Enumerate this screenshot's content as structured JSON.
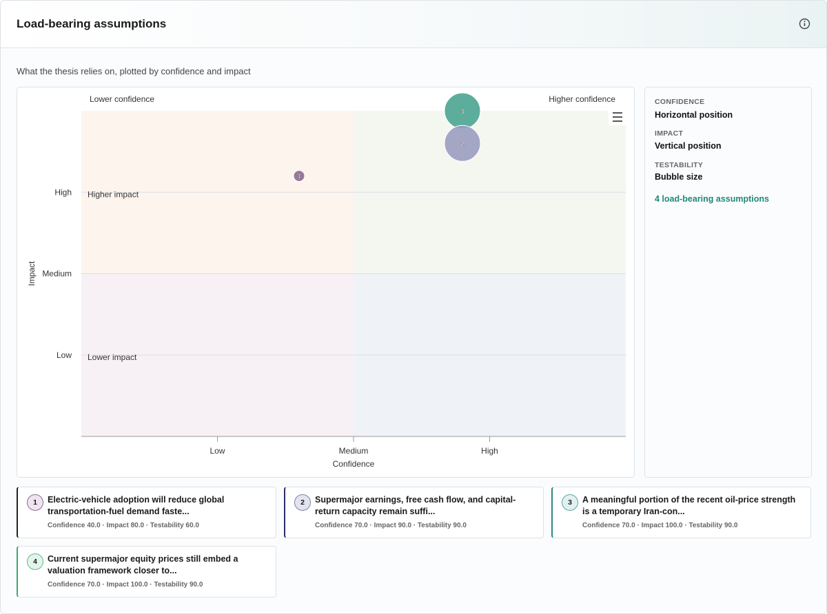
{
  "header": {
    "title": "Load-bearing assumptions"
  },
  "subtitle": "What the thesis relies on, plotted by confidence and impact",
  "chart_data": {
    "type": "bubble",
    "x_label": "Confidence",
    "y_label": "Impact",
    "quadrant_labels": {
      "top_left": "Lower confidence",
      "top_right": "Higher confidence",
      "upper": "Higher impact",
      "lower": "Lower impact"
    },
    "xlim": [
      0,
      100
    ],
    "ylim": [
      0,
      100
    ],
    "xticks": [
      {
        "value": 25,
        "label": "Low"
      },
      {
        "value": 50,
        "label": "Medium"
      },
      {
        "value": 75,
        "label": "High"
      }
    ],
    "yticks": [
      {
        "value": 25,
        "label": "Low"
      },
      {
        "value": 50,
        "label": "Medium"
      },
      {
        "value": 75,
        "label": "High"
      }
    ],
    "grid": true,
    "points": [
      {
        "label": "1",
        "x": 40,
        "y": 80,
        "z": 60,
        "color": "#8b6b91"
      },
      {
        "label": "2",
        "x": 70,
        "y": 90,
        "z": 90,
        "color": "#9a9cc0"
      },
      {
        "label": "3",
        "x": 70,
        "y": 100,
        "z": 90,
        "color": "#5aab9c"
      },
      {
        "label": "4",
        "x": 70,
        "y": 100,
        "z": 90,
        "color": "#5fb88a"
      }
    ]
  },
  "legend_panel": {
    "items": [
      {
        "key": "CONFIDENCE",
        "desc": "Horizontal position"
      },
      {
        "key": "IMPACT",
        "desc": "Vertical position"
      },
      {
        "key": "TESTABILITY",
        "desc": "Bubble size"
      }
    ],
    "count": "4 load-bearing assumptions"
  },
  "cards": [
    {
      "num": "1",
      "title": "Electric-vehicle adoption will reduce global transportation-fuel demand faste...",
      "meta": "Confidence 40.0 · Impact 80.0 · Testability 60.0"
    },
    {
      "num": "2",
      "title": "Supermajor earnings, free cash flow, and capital-return capacity remain suffi...",
      "meta": "Confidence 70.0 · Impact 90.0 · Testability 90.0"
    },
    {
      "num": "3",
      "title": "A meaningful portion of the recent oil-price strength is a temporary Iran-con...",
      "meta": "Confidence 70.0 · Impact 100.0 · Testability 90.0"
    },
    {
      "num": "4",
      "title": "Current supermajor equity prices still embed a valuation framework closer to...",
      "meta": "Confidence 70.0 · Impact 100.0 · Testability 90.0"
    }
  ]
}
